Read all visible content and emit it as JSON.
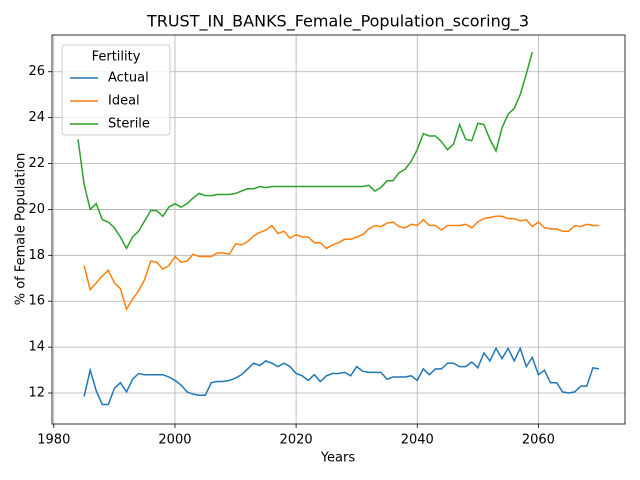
{
  "chart_data": {
    "type": "line",
    "title": "TRUST_IN_BANKS_Female_Population_scoring_3",
    "x_label": "Years",
    "y_label": "% of Female Population",
    "legend_title": "Fertility",
    "legend_position": "upper left",
    "grid": true,
    "xlim": [
      1979.7,
      2074.3
    ],
    "ylim": [
      10.65,
      27.6
    ],
    "xticks": [
      1980,
      2000,
      2020,
      2040,
      2060
    ],
    "yticks": [
      12,
      14,
      16,
      18,
      20,
      22,
      24,
      26
    ],
    "x": [
      1984,
      1985,
      1986,
      1987,
      1988,
      1989,
      1990,
      1991,
      1992,
      1993,
      1994,
      1995,
      1996,
      1997,
      1998,
      1999,
      2000,
      2001,
      2002,
      2003,
      2004,
      2005,
      2006,
      2007,
      2008,
      2009,
      2010,
      2011,
      2012,
      2013,
      2014,
      2015,
      2016,
      2017,
      2018,
      2019,
      2020,
      2021,
      2022,
      2023,
      2024,
      2025,
      2026,
      2027,
      2028,
      2029,
      2030,
      2031,
      2032,
      2033,
      2034,
      2035,
      2036,
      2037,
      2038,
      2039,
      2040,
      2041,
      2042,
      2043,
      2044,
      2045,
      2046,
      2047,
      2048,
      2049,
      2050,
      2051,
      2052,
      2053,
      2054,
      2055,
      2056,
      2057,
      2058,
      2059,
      2060,
      2061,
      2062,
      2063,
      2064,
      2065,
      2066,
      2067,
      2068,
      2069,
      2070
    ],
    "series": [
      {
        "name": "Actual",
        "color": "#1f77b4",
        "values": [
          null,
          11.85,
          13.0,
          12.1,
          11.5,
          11.5,
          12.2,
          12.45,
          12.05,
          12.6,
          12.85,
          12.8,
          12.8,
          12.8,
          12.8,
          12.7,
          12.55,
          12.35,
          12.05,
          11.95,
          11.9,
          11.9,
          12.45,
          12.5,
          12.5,
          12.55,
          12.65,
          12.8,
          13.05,
          13.3,
          13.2,
          13.4,
          13.3,
          13.15,
          13.3,
          13.15,
          12.85,
          12.75,
          12.55,
          12.8,
          12.5,
          12.75,
          12.85,
          12.85,
          12.9,
          12.75,
          13.15,
          12.95,
          12.9,
          12.9,
          12.9,
          12.6,
          12.7,
          12.7,
          12.7,
          12.75,
          12.55,
          13.05,
          12.8,
          13.05,
          13.05,
          13.3,
          13.3,
          13.15,
          13.15,
          13.35,
          13.1,
          13.75,
          13.4,
          13.95,
          13.5,
          13.95,
          13.4,
          13.95,
          13.15,
          13.55,
          12.8,
          13.0,
          12.45,
          12.45,
          12.05,
          12.0,
          12.05,
          12.3,
          12.3,
          13.1,
          13.05
        ]
      },
      {
        "name": "Ideal",
        "color": "#ff7f0e",
        "values": [
          null,
          17.55,
          16.5,
          16.8,
          17.1,
          17.35,
          16.8,
          16.55,
          15.65,
          16.1,
          16.45,
          16.95,
          17.75,
          17.7,
          17.4,
          17.55,
          17.95,
          17.7,
          17.75,
          18.05,
          17.95,
          17.95,
          17.95,
          18.1,
          18.1,
          18.05,
          18.5,
          18.45,
          18.6,
          18.85,
          19.0,
          19.1,
          19.3,
          18.95,
          19.05,
          18.75,
          18.9,
          18.8,
          18.8,
          18.55,
          18.55,
          18.3,
          18.45,
          18.55,
          18.7,
          18.7,
          18.8,
          18.9,
          19.15,
          19.3,
          19.25,
          19.4,
          19.45,
          19.25,
          19.2,
          19.35,
          19.3,
          19.55,
          19.3,
          19.3,
          19.1,
          19.3,
          19.3,
          19.3,
          19.35,
          19.2,
          19.45,
          19.6,
          19.65,
          19.7,
          19.7,
          19.6,
          19.6,
          19.5,
          19.55,
          19.25,
          19.45,
          19.2,
          19.15,
          19.15,
          19.05,
          19.05,
          19.3,
          19.25,
          19.35,
          19.3,
          19.3
        ]
      },
      {
        "name": "Sterile",
        "color": "#2ca02c",
        "values": [
          23.05,
          21.1,
          20.0,
          20.25,
          19.55,
          19.45,
          19.2,
          18.8,
          18.3,
          18.8,
          19.05,
          19.5,
          19.95,
          19.95,
          19.7,
          20.1,
          20.25,
          20.1,
          20.25,
          20.5,
          20.7,
          20.6,
          20.6,
          20.65,
          20.65,
          20.65,
          20.7,
          20.8,
          20.9,
          20.9,
          21.0,
          20.95,
          21.0,
          21.0,
          21.0,
          21.0,
          21.0,
          21.0,
          21.0,
          21.0,
          21.0,
          21.0,
          21.0,
          21.0,
          21.0,
          21.0,
          21.0,
          21.0,
          21.05,
          20.8,
          20.95,
          21.25,
          21.25,
          21.6,
          21.75,
          22.1,
          22.6,
          23.3,
          23.2,
          23.2,
          22.95,
          22.6,
          22.85,
          23.7,
          23.05,
          23.0,
          23.75,
          23.7,
          23.05,
          22.55,
          23.55,
          24.15,
          24.4,
          25.0,
          25.9,
          26.85,
          null,
          null,
          null,
          null,
          null,
          null,
          null,
          null,
          null,
          null,
          null
        ]
      }
    ]
  }
}
